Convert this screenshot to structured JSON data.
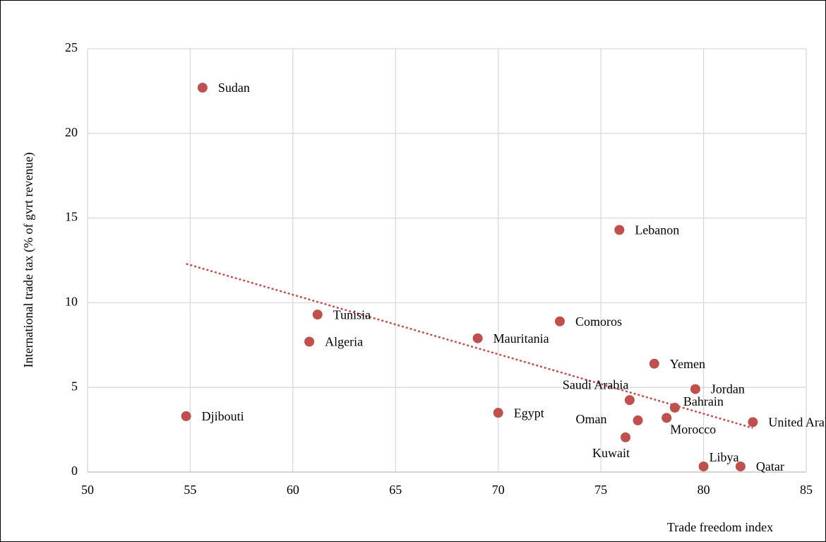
{
  "chart_data": {
    "type": "scatter",
    "xlabel": "Trade freedom index",
    "ylabel": "International trade tax (% of  gvrt revenue)",
    "labels": [
      "Sudan",
      "Lebanon",
      "Tunisia",
      "Algeria",
      "Djibouti",
      "Mauritania",
      "Egypt",
      "Comoros",
      "Yemen",
      "Saudi Arabia",
      "Oman",
      "Kuwait",
      "Bahrain",
      "Morocco",
      "Jordan",
      "United Arab Emirates",
      "Libya",
      "Qatar"
    ],
    "x": [
      55.6,
      75.9,
      61.2,
      60.8,
      54.8,
      69.0,
      70.0,
      73.0,
      77.6,
      76.4,
      76.8,
      76.2,
      78.6,
      78.2,
      79.6,
      82.4,
      80.0,
      81.8
    ],
    "y": [
      22.7,
      14.3,
      9.3,
      7.7,
      3.3,
      7.9,
      3.5,
      8.9,
      6.4,
      4.25,
      3.05,
      2.05,
      3.8,
      3.2,
      4.9,
      2.95,
      0.33,
      0.33
    ],
    "color": "#c0504d",
    "trendline": {
      "x": [
        54.8,
        82.4
      ],
      "y": [
        12.3,
        2.6
      ]
    },
    "xlim": [
      50,
      85
    ],
    "xticks": [
      50,
      55,
      60,
      65,
      70,
      75,
      80,
      85
    ],
    "ylim": [
      0,
      25
    ],
    "yticks": [
      0,
      5,
      10,
      15,
      20,
      25
    ],
    "grid": true
  }
}
